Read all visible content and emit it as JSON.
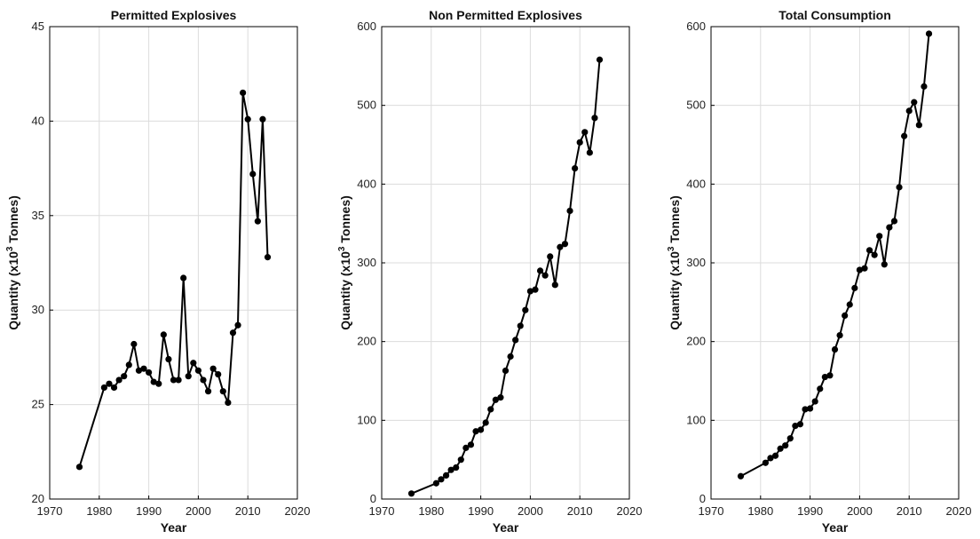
{
  "chart_data": [
    {
      "type": "line",
      "title": "Permitted Explosives",
      "xlabel": "Year",
      "ylabel": "Quantity (x10",
      "ylabel_sup": "3",
      "ylabel_tail": " Tonnes)",
      "xlim": [
        1970,
        2020
      ],
      "ylim": [
        20,
        45
      ],
      "xticks": [
        1970,
        1980,
        1990,
        2000,
        2010,
        2020
      ],
      "yticks": [
        20,
        25,
        30,
        35,
        40,
        45
      ],
      "grid": true,
      "x": [
        1976,
        1981,
        1982,
        1983,
        1984,
        1985,
        1986,
        1987,
        1988,
        1989,
        1990,
        1991,
        1992,
        1993,
        1994,
        1995,
        1996,
        1997,
        1998,
        1999,
        2000,
        2001,
        2002,
        2003,
        2004,
        2005,
        2006,
        2007,
        2008,
        2009,
        2010,
        2011,
        2012,
        2013,
        2014
      ],
      "y": [
        21.7,
        25.9,
        26.1,
        25.9,
        26.3,
        26.5,
        27.1,
        28.2,
        26.8,
        26.9,
        26.7,
        26.2,
        26.1,
        28.7,
        27.4,
        26.3,
        26.3,
        31.7,
        26.5,
        27.2,
        26.8,
        26.3,
        25.7,
        26.9,
        26.6,
        25.7,
        25.1,
        28.8,
        29.2,
        41.5,
        40.1,
        37.2,
        34.7,
        40.1,
        32.8
      ]
    },
    {
      "type": "line",
      "title": "Non Permitted Explosives",
      "xlabel": "Year",
      "ylabel": "Quantity (x10",
      "ylabel_sup": "3",
      "ylabel_tail": " Tonnes)",
      "xlim": [
        1970,
        2020
      ],
      "ylim": [
        0,
        600
      ],
      "xticks": [
        1970,
        1980,
        1990,
        2000,
        2010,
        2020
      ],
      "yticks": [
        0,
        100,
        200,
        300,
        400,
        500,
        600
      ],
      "grid": true,
      "x": [
        1976,
        1981,
        1982,
        1983,
        1984,
        1985,
        1986,
        1987,
        1988,
        1989,
        1990,
        1991,
        1992,
        1993,
        1994,
        1995,
        1996,
        1997,
        1998,
        1999,
        2000,
        2001,
        2002,
        2003,
        2004,
        2005,
        2006,
        2007,
        2008,
        2009,
        2010,
        2011,
        2012,
        2013,
        2014
      ],
      "y": [
        7,
        20,
        25,
        30,
        37,
        40,
        50,
        65,
        69,
        86,
        88,
        97,
        114,
        126,
        129,
        163,
        181,
        202,
        220,
        240,
        264,
        266,
        290,
        284,
        308,
        272,
        320,
        324,
        366,
        420,
        453,
        466,
        440,
        484,
        558
      ]
    },
    {
      "type": "line",
      "title": "Total Consumption",
      "xlabel": "Year",
      "ylabel": "Quantity (x10",
      "ylabel_sup": "3",
      "ylabel_tail": " Tonnes)",
      "xlim": [
        1970,
        2020
      ],
      "ylim": [
        0,
        600
      ],
      "xticks": [
        1970,
        1980,
        1990,
        2000,
        2010,
        2020
      ],
      "yticks": [
        0,
        100,
        200,
        300,
        400,
        500,
        600
      ],
      "grid": true,
      "x": [
        1976,
        1981,
        1982,
        1983,
        1984,
        1985,
        1986,
        1987,
        1988,
        1989,
        1990,
        1991,
        1992,
        1993,
        1994,
        1995,
        1996,
        1997,
        1998,
        1999,
        2000,
        2001,
        2002,
        2003,
        2004,
        2005,
        2006,
        2007,
        2008,
        2009,
        2010,
        2011,
        2012,
        2013,
        2014
      ],
      "y": [
        29,
        46,
        52,
        55,
        64,
        68,
        77,
        93,
        95,
        114,
        115,
        124,
        140,
        155,
        157,
        190,
        208,
        233,
        247,
        268,
        291,
        293,
        316,
        310,
        334,
        298,
        345,
        353,
        396,
        461,
        493,
        504,
        475,
        524,
        591
      ]
    }
  ]
}
